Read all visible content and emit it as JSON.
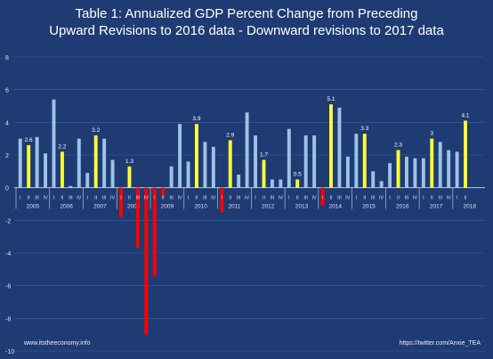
{
  "chart_data": {
    "type": "bar",
    "title": "Table 1: Annualized GDP Percent Change from Preceding",
    "subtitle": "Upward Revisions to 2016 data - Downward revisions to 2017 data",
    "ylim": [
      -10,
      8
    ],
    "yticks": [
      8,
      6,
      4,
      2,
      0,
      -2,
      -4,
      -6,
      -8,
      -10
    ],
    "grid": true,
    "quarter_labels": [
      "I",
      "II",
      "III",
      "IV"
    ],
    "years": [
      "2005",
      "2006",
      "2007",
      "2008",
      "2009",
      "2010",
      "2011",
      "2012",
      "2013",
      "2014",
      "2015",
      "2016",
      "2017",
      "2018"
    ],
    "values": [
      3.0,
      2.6,
      3.1,
      2.1,
      5.4,
      2.2,
      0.1,
      3.0,
      0.9,
      3.2,
      3.0,
      1.7,
      -1.8,
      1.3,
      -3.7,
      -9.0,
      -5.4,
      -0.5,
      1.3,
      3.9,
      1.6,
      3.9,
      2.8,
      2.5,
      -1.5,
      2.9,
      0.8,
      4.6,
      3.2,
      1.7,
      0.5,
      0.5,
      3.6,
      0.5,
      3.2,
      3.2,
      -1.1,
      5.1,
      4.9,
      1.9,
      3.3,
      3.3,
      1.0,
      0.4,
      1.5,
      2.3,
      1.9,
      1.8,
      1.8,
      3.0,
      2.8,
      2.3,
      2.2,
      4.1
    ],
    "highlighted_labels": {
      "1": "2.6",
      "5": "2.2",
      "9": "3.2",
      "13": "1.3",
      "21": "3.9",
      "25": "2.9",
      "29": "1.7",
      "33": "0.5",
      "37": "5.1",
      "41": "3.3",
      "45": "2.3",
      "49": "3",
      "53": "4.1"
    },
    "colors": {
      "positive": "#9dc3e6",
      "highlight": "#ffff33",
      "negative": "#ff0000",
      "grid": "#3f5f9c",
      "axis_text": "#d9e2f3",
      "background": "#1f3b73"
    }
  },
  "footer": {
    "source_left": "www.itstheeconomy.info",
    "source_right": "https://twitter.com/Anxie_TEA"
  }
}
